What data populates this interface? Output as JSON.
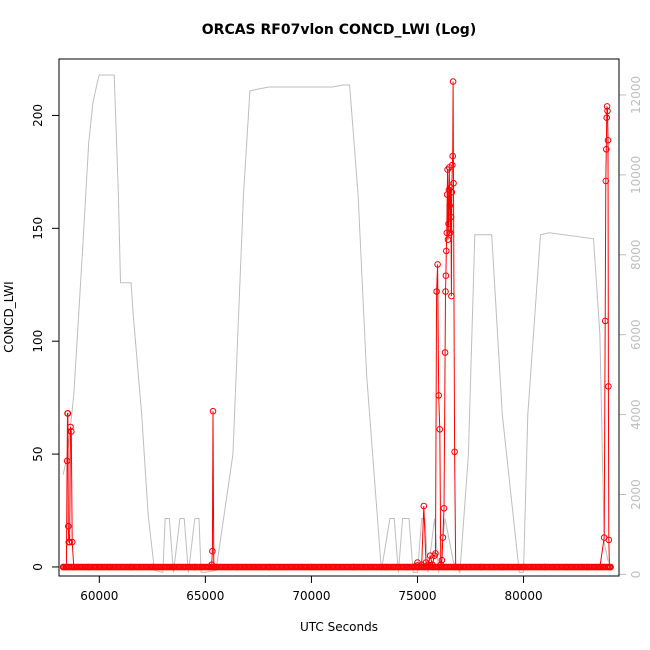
{
  "chart_data": {
    "type": "line",
    "title": "ORCAS RF07vlon CONCD_LWI (Log)",
    "xlabel": "UTC Seconds",
    "ylabel": "CONCD_LWI",
    "xlim": [
      58100,
      84500
    ],
    "ylim": [
      -4,
      225
    ],
    "y2lim": [
      -40,
      12900
    ],
    "x_ticks": [
      60000,
      65000,
      70000,
      75000,
      80000
    ],
    "x_tick_labels": [
      "60000",
      "65000",
      "70000",
      "75000",
      "80000"
    ],
    "y_ticks": [
      0,
      50,
      100,
      150,
      200
    ],
    "y_tick_labels": [
      "0",
      "50",
      "100",
      "150",
      "200"
    ],
    "y2_ticks": [
      0,
      2000,
      4000,
      6000,
      8000,
      10000,
      12000
    ],
    "y2_tick_labels": [
      "0",
      "2000",
      "4000",
      "6000",
      "8000",
      "10000",
      "12000"
    ],
    "grid": false,
    "colors": {
      "concentration": "#ff0000",
      "altitude": "#bebebe"
    },
    "series": [
      {
        "axis": "left",
        "style": "line+points",
        "x": [
          58300,
          58450,
          58480,
          58500,
          58520,
          58540,
          58560,
          58600,
          58640,
          58680,
          58720,
          58800,
          59500,
          60500,
          61500,
          62500,
          63500,
          64500,
          65200,
          65300,
          65330,
          65360,
          65400,
          65500,
          66500,
          68000,
          70000,
          72000,
          73500,
          74500,
          75000,
          75200,
          75300,
          75400,
          75500,
          75600,
          75700,
          75800,
          75850,
          75900,
          75950,
          76000,
          76050,
          76100,
          76150,
          76200,
          76250,
          76300,
          76320,
          76340,
          76360,
          76380,
          76400,
          76420,
          76440,
          76460,
          76480,
          76500,
          76520,
          76540,
          76560,
          76580,
          76600,
          76620,
          76640,
          76660,
          76680,
          76700,
          76750,
          76800,
          77000,
          78000,
          79000,
          80000,
          81000,
          82000,
          83000,
          83600,
          83800,
          83850,
          83880,
          83900,
          83920,
          83940,
          83960,
          83980,
          84000,
          84020,
          84050,
          84100
        ],
        "y": [
          0,
          0,
          47,
          68,
          68,
          18,
          11,
          11,
          62,
          60,
          11,
          0,
          0,
          0,
          0,
          0,
          0,
          0,
          0,
          1,
          7,
          69,
          0,
          0,
          0,
          0,
          0,
          0,
          0,
          0,
          2,
          1,
          27,
          2,
          1,
          5,
          1,
          5,
          6,
          122,
          134,
          76,
          61,
          1,
          3,
          13,
          26,
          95,
          122,
          129,
          140,
          148,
          165,
          176,
          145,
          152,
          167,
          177,
          160,
          148,
          168,
          155,
          120,
          166,
          178,
          182,
          215,
          170,
          51,
          0,
          0,
          0,
          0,
          0,
          0,
          0,
          0,
          0,
          13,
          109,
          171,
          185,
          199,
          204,
          202,
          189,
          80,
          12,
          0,
          0
        ]
      },
      {
        "axis": "right",
        "style": "line",
        "x": [
          58300,
          58500,
          58800,
          59200,
          59500,
          59700,
          59900,
          60000,
          60300,
          60700,
          60900,
          61000,
          61500,
          61600,
          62000,
          62300,
          62600,
          63000,
          63100,
          63300,
          63500,
          63800,
          64000,
          64200,
          64500,
          64700,
          64800,
          65000,
          65500,
          66300,
          66800,
          67100,
          67500,
          68000,
          69000,
          70000,
          71000,
          71500,
          71800,
          72200,
          72600,
          73300,
          73700,
          73900,
          74100,
          74300,
          74600,
          74800,
          75000,
          75200,
          75350,
          75500,
          75800,
          76000,
          76300,
          76700,
          77000,
          77400,
          77700,
          78500,
          79000,
          79800,
          80000,
          80200,
          80800,
          81200,
          83300,
          83600,
          83800,
          84000
        ],
        "y": [
          2500,
          3000,
          4500,
          8000,
          10800,
          11800,
          12300,
          12500,
          12500,
          12500,
          9500,
          7300,
          7300,
          6500,
          4000,
          1500,
          100,
          50,
          1400,
          1400,
          50,
          1400,
          1400,
          50,
          1400,
          1400,
          50,
          50,
          100,
          3000,
          9500,
          12100,
          12150,
          12200,
          12200,
          12200,
          12200,
          12250,
          12250,
          9500,
          5000,
          100,
          1400,
          1400,
          50,
          1400,
          1400,
          50,
          50,
          1400,
          1400,
          50,
          1400,
          50,
          1400,
          300,
          50,
          3000,
          8500,
          8500,
          4000,
          50,
          50,
          4000,
          8500,
          8550,
          8400,
          6000,
          800,
          300
        ]
      }
    ]
  }
}
